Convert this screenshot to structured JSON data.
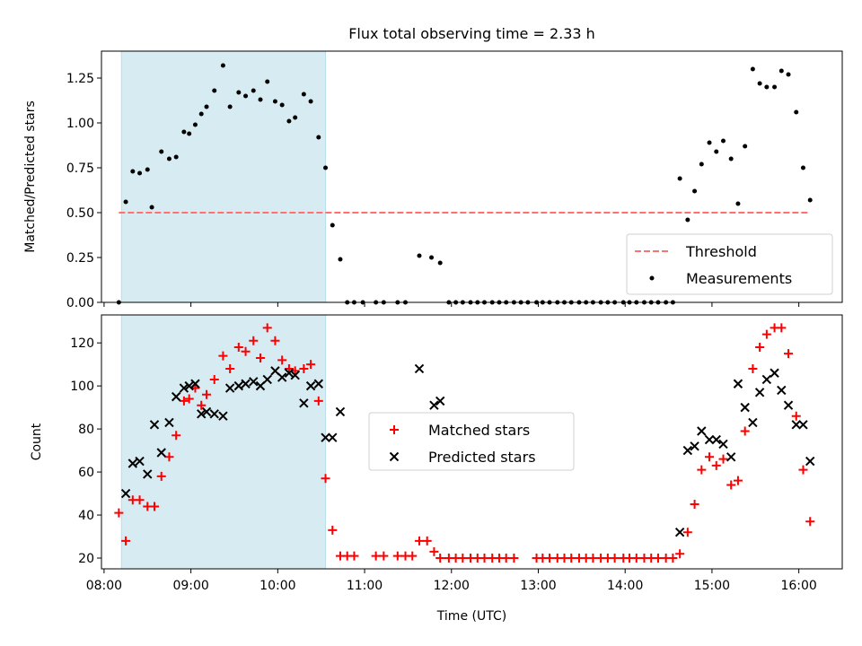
{
  "chart_data": [
    {
      "type": "scatter",
      "title": "Flux total observing time = 2.33 h",
      "ylabel": "Matched/Predicted stars",
      "xlim": [
        7.97,
        16.5
      ],
      "ylim": [
        0,
        1.4
      ],
      "yticks": [
        "0.00",
        "0.25",
        "0.50",
        "0.75",
        "1.00",
        "1.25"
      ],
      "grid": false,
      "legend_position": "lower-right",
      "highlight_span": {
        "x_start": 8.2,
        "x_end": 10.55,
        "color": "#add8e6"
      },
      "series": [
        {
          "name": "Threshold",
          "style": "dashed-line",
          "color": "#ff7070",
          "x": [
            8.17,
            16.13
          ],
          "y": [
            0.5,
            0.5
          ]
        },
        {
          "name": "Measurements",
          "style": "point",
          "color": "#000000",
          "x": [
            8.17,
            8.25,
            8.33,
            8.41,
            8.5,
            8.55,
            8.66,
            8.75,
            8.83,
            8.92,
            8.98,
            9.05,
            9.12,
            9.18,
            9.27,
            9.37,
            9.45,
            9.55,
            9.63,
            9.72,
            9.8,
            9.88,
            9.97,
            10.05,
            10.13,
            10.2,
            10.3,
            10.38,
            10.47,
            10.55,
            10.63,
            10.72,
            10.8,
            10.88,
            10.98,
            11.13,
            11.22,
            11.38,
            11.47,
            11.63,
            11.77,
            11.87,
            11.97,
            12.05,
            12.13,
            12.22,
            12.3,
            12.38,
            12.47,
            12.55,
            12.63,
            12.72,
            12.8,
            12.88,
            12.98,
            13.05,
            13.13,
            13.22,
            13.3,
            13.38,
            13.47,
            13.55,
            13.63,
            13.72,
            13.8,
            13.88,
            13.98,
            14.05,
            14.13,
            14.22,
            14.3,
            14.38,
            14.47,
            14.55,
            14.63,
            14.72,
            14.8,
            14.88,
            14.97,
            15.05,
            15.13,
            15.22,
            15.3,
            15.38,
            15.47,
            15.55,
            15.63,
            15.72,
            15.8,
            15.88,
            15.97,
            16.05,
            16.13
          ],
          "y": [
            0.0,
            0.56,
            0.73,
            0.72,
            0.74,
            0.53,
            0.84,
            0.8,
            0.81,
            0.95,
            0.94,
            0.99,
            1.05,
            1.09,
            1.18,
            1.32,
            1.09,
            1.17,
            1.15,
            1.18,
            1.13,
            1.23,
            1.12,
            1.1,
            1.01,
            1.03,
            1.16,
            1.12,
            0.92,
            0.75,
            0.43,
            0.24,
            0.0,
            0.0,
            0.0,
            0.0,
            0.0,
            0.0,
            0.0,
            0.26,
            0.25,
            0.22,
            0.0,
            0.0,
            0.0,
            0.0,
            0.0,
            0.0,
            0.0,
            0.0,
            0.0,
            0.0,
            0.0,
            0.0,
            0.0,
            0.0,
            0.0,
            0.0,
            0.0,
            0.0,
            0.0,
            0.0,
            0.0,
            0.0,
            0.0,
            0.0,
            0.0,
            0.0,
            0.0,
            0.0,
            0.0,
            0.0,
            0.0,
            0.0,
            0.69,
            0.46,
            0.62,
            0.77,
            0.89,
            0.84,
            0.9,
            0.8,
            0.55,
            0.87,
            1.3,
            1.22,
            1.2,
            1.2,
            1.29,
            1.27,
            1.06,
            0.75,
            0.57
          ]
        }
      ]
    },
    {
      "type": "scatter",
      "xlabel": "Time (UTC)",
      "ylabel": "Count",
      "xlim": [
        7.97,
        16.5
      ],
      "ylim": [
        15,
        133
      ],
      "xticks": [
        "08:00",
        "09:00",
        "10:00",
        "11:00",
        "12:00",
        "13:00",
        "14:00",
        "15:00",
        "16:00"
      ],
      "yticks": [
        "20",
        "40",
        "60",
        "80",
        "100",
        "120"
      ],
      "grid": false,
      "legend_position": "center",
      "highlight_span": {
        "x_start": 8.2,
        "x_end": 10.55,
        "color": "#add8e6"
      },
      "series": [
        {
          "name": "Matched stars",
          "marker": "plus",
          "color": "#ff0000",
          "x": [
            8.17,
            8.25,
            8.33,
            8.41,
            8.5,
            8.58,
            8.66,
            8.75,
            8.83,
            8.92,
            8.98,
            9.05,
            9.12,
            9.18,
            9.27,
            9.37,
            9.45,
            9.55,
            9.63,
            9.72,
            9.8,
            9.88,
            9.97,
            10.05,
            10.13,
            10.2,
            10.3,
            10.38,
            10.47,
            10.55,
            10.63,
            10.72,
            10.8,
            10.88,
            11.13,
            11.22,
            11.38,
            11.47,
            11.55,
            11.63,
            11.72,
            11.8,
            11.87,
            11.97,
            12.05,
            12.13,
            12.22,
            12.3,
            12.38,
            12.47,
            12.55,
            12.63,
            12.72,
            12.98,
            13.05,
            13.13,
            13.22,
            13.3,
            13.38,
            13.47,
            13.55,
            13.63,
            13.72,
            13.8,
            13.88,
            13.98,
            14.05,
            14.13,
            14.22,
            14.3,
            14.38,
            14.47,
            14.55,
            14.63,
            14.72,
            14.8,
            14.88,
            14.97,
            15.05,
            15.13,
            15.22,
            15.3,
            15.38,
            15.47,
            15.55,
            15.63,
            15.72,
            15.8,
            15.88,
            15.97,
            16.05,
            16.13
          ],
          "y": [
            41,
            28,
            47,
            47,
            44,
            44,
            58,
            67,
            77,
            93,
            94,
            99,
            91,
            96,
            103,
            114,
            108,
            118,
            116,
            121,
            113,
            127,
            121,
            112,
            108,
            107,
            108,
            110,
            93,
            57,
            33,
            21,
            21,
            21,
            21,
            21,
            21,
            21,
            21,
            28,
            28,
            23,
            20,
            20,
            20,
            20,
            20,
            20,
            20,
            20,
            20,
            20,
            20,
            20,
            20,
            20,
            20,
            20,
            20,
            20,
            20,
            20,
            20,
            20,
            20,
            20,
            20,
            20,
            20,
            20,
            20,
            20,
            20,
            22,
            32,
            45,
            61,
            67,
            63,
            66,
            54,
            56,
            79,
            108,
            118,
            124,
            127,
            127,
            115,
            86,
            61,
            37
          ]
        },
        {
          "name": "Predicted stars",
          "marker": "x",
          "color": "#000000",
          "x": [
            8.25,
            8.33,
            8.41,
            8.5,
            8.58,
            8.66,
            8.75,
            8.83,
            8.92,
            8.98,
            9.05,
            9.12,
            9.18,
            9.27,
            9.37,
            9.45,
            9.55,
            9.63,
            9.72,
            9.8,
            9.88,
            9.97,
            10.05,
            10.13,
            10.2,
            10.3,
            10.38,
            10.47,
            10.55,
            10.63,
            10.72,
            11.63,
            11.8,
            11.87,
            14.63,
            14.72,
            14.8,
            14.88,
            14.97,
            15.05,
            15.13,
            15.22,
            15.3,
            15.38,
            15.47,
            15.55,
            15.63,
            15.72,
            15.8,
            15.88,
            15.97,
            16.05,
            16.13
          ],
          "y": [
            50,
            64,
            65,
            59,
            82,
            69,
            83,
            95,
            99,
            100,
            101,
            87,
            88,
            87,
            86,
            99,
            100,
            101,
            102,
            100,
            103,
            107,
            104,
            106,
            105,
            92,
            100,
            101,
            76,
            76,
            88,
            108,
            91,
            93,
            32,
            70,
            72,
            79,
            75,
            75,
            73,
            67,
            101,
            90,
            83,
            97,
            103,
            106,
            98,
            91,
            82,
            82,
            65
          ]
        }
      ]
    }
  ]
}
